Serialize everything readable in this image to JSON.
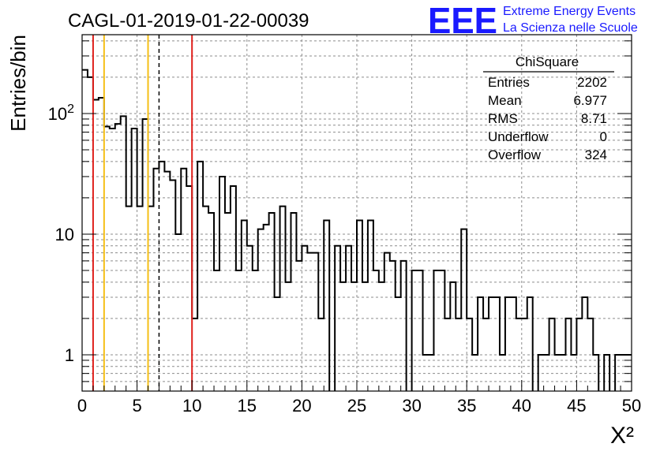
{
  "header": {
    "run_title": "CAGL-01-2019-01-22-00039",
    "logo_text": "EEE",
    "logo_line1": "Extreme Energy Events",
    "logo_line2": "La Scienza nelle Scuole"
  },
  "colors": {
    "histogram": "#000000",
    "grid": "#8c8c8c",
    "red_lines": "#e0201c",
    "yellow_lines": "#f5bf16",
    "logo": "#1a1aff"
  },
  "stats_box": {
    "title": "ChiSquare",
    "rows": [
      {
        "label": "Entries",
        "value": "2202"
      },
      {
        "label": "Mean",
        "value": "6.977"
      },
      {
        "label": "RMS",
        "value": "8.71"
      },
      {
        "label": "Underflow",
        "value": "0"
      },
      {
        "label": "Overflow",
        "value": "324"
      }
    ]
  },
  "chart_data": {
    "type": "histogram",
    "xlabel": "X²",
    "ylabel": "Entries/bin",
    "xlim": [
      0,
      50
    ],
    "ylim": [
      0.5,
      450
    ],
    "y_scale": "log",
    "grid": true,
    "x_ticks": [
      "0",
      "5",
      "10",
      "15",
      "20",
      "25",
      "30",
      "35",
      "40",
      "45",
      "50"
    ],
    "y_ticks": [
      {
        "value": 1,
        "label": "1"
      },
      {
        "value": 10,
        "label": "10"
      },
      {
        "value": 100,
        "label": "10²"
      }
    ],
    "bin_width": 0.5,
    "bin_edges_start": 0,
    "counts": [
      230,
      200,
      130,
      135,
      78,
      75,
      82,
      95,
      17,
      75,
      17,
      90,
      17,
      35,
      40,
      33,
      28,
      10,
      35,
      25,
      2,
      40,
      17,
      15,
      5,
      30,
      15,
      25,
      5,
      13,
      8,
      5,
      11,
      12,
      15,
      3,
      17,
      4,
      15,
      6,
      8,
      7,
      7,
      2,
      13,
      0,
      8,
      4,
      8,
      4,
      13,
      4,
      13,
      5,
      4,
      7,
      6,
      3,
      6,
      0,
      5,
      5,
      1,
      1,
      5,
      5,
      2,
      4,
      2,
      11,
      2,
      1,
      3,
      2,
      3,
      3,
      1,
      3,
      3,
      2,
      2,
      3,
      0,
      1,
      1,
      2,
      1,
      1,
      2,
      1,
      2,
      3,
      2,
      1,
      0,
      1,
      0,
      1,
      1,
      1
    ],
    "vertical_lines": [
      {
        "x": 1,
        "color": "red",
        "style": "solid"
      },
      {
        "x": 2,
        "color": "yellow",
        "style": "solid"
      },
      {
        "x": 6,
        "color": "yellow",
        "style": "solid"
      },
      {
        "x": 7,
        "color": "black",
        "style": "dashed"
      },
      {
        "x": 10,
        "color": "red",
        "style": "solid"
      }
    ]
  }
}
